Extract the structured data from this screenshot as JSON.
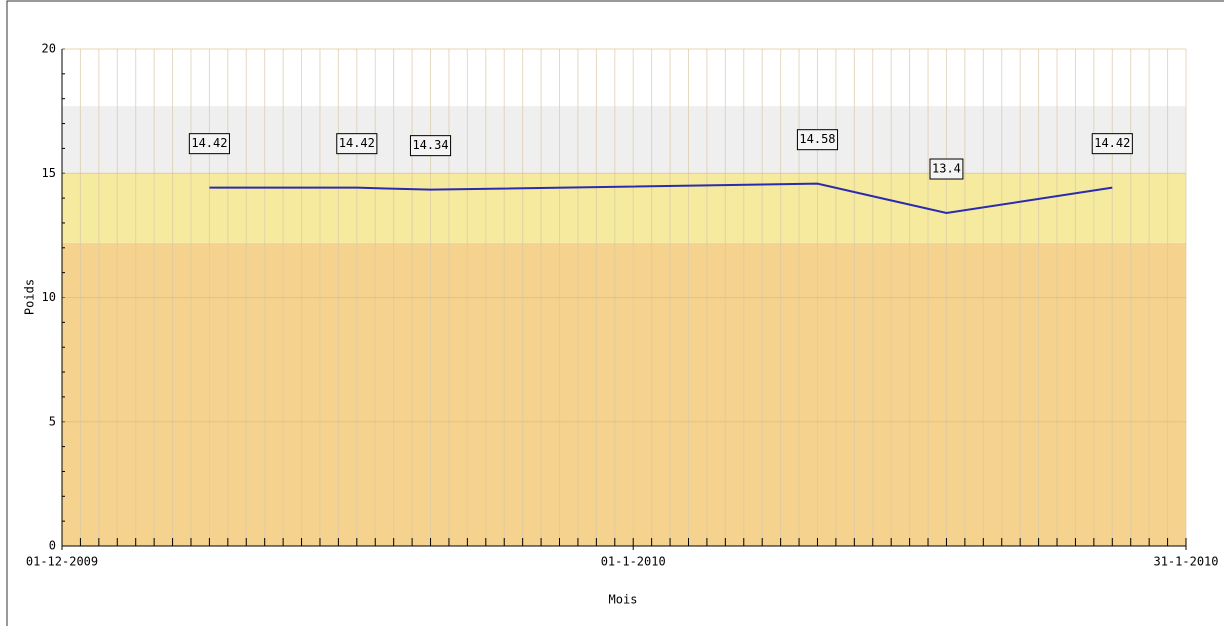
{
  "chart_data": {
    "type": "line",
    "y_label": "Poids",
    "x_label": "Mois",
    "x": [
      "2009-12-09",
      "2009-12-17",
      "2009-12-21",
      "2010-01-11",
      "2010-01-18",
      "2010-01-27"
    ],
    "series": [
      {
        "color": "#2b2bb0",
        "values": [
          14.42,
          14.42,
          14.34,
          14.58,
          13.4,
          14.42
        ]
      }
    ],
    "xlim": [
      "2009-12-01",
      "2010-01-31"
    ],
    "xticks": [
      {
        "value": "2009-12-01",
        "label": "01-12-2009"
      },
      {
        "value": "2010-01-01",
        "label": "01-1-2010"
      },
      {
        "value": "2010-01-31",
        "label": "31-1-2010"
      }
    ],
    "ylim": [
      0,
      20
    ],
    "yticks": [
      0,
      5,
      10,
      15,
      20
    ],
    "bands": [
      {
        "from": 0,
        "to": 12.2,
        "color": "#f5d28e"
      },
      {
        "from": 12.2,
        "to": 15,
        "color": "#f5ea9e"
      },
      {
        "from": 15,
        "to": 17.7,
        "color": "#efefef"
      }
    ],
    "grid": true
  }
}
